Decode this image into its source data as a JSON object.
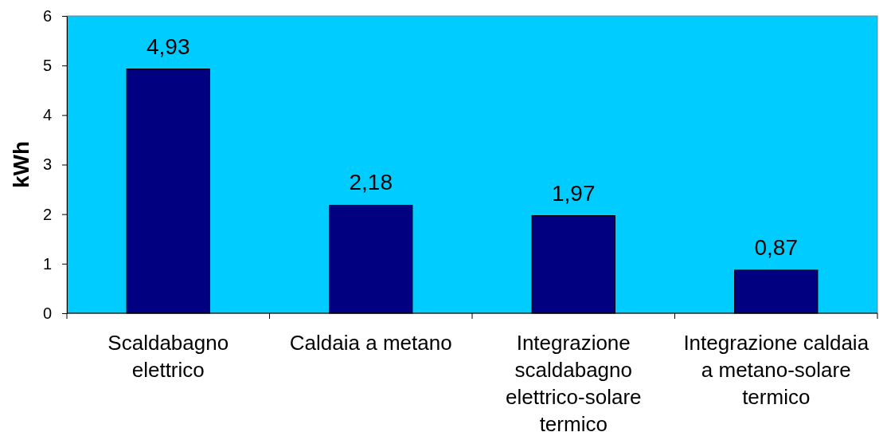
{
  "chart_data": {
    "type": "bar",
    "ylabel": "kWh",
    "categories": [
      "Scaldabagno elettrico",
      "Caldaia a metano",
      "Integrazione scaldabagno elettrico-solare termico",
      "Integrazione caldaia a metano-solare termico"
    ],
    "values": [
      4.93,
      2.18,
      1.97,
      0.87
    ],
    "value_labels": [
      "4,93",
      "2,18",
      "1,97",
      "0,87"
    ],
    "color": "#000080",
    "ylim": [
      0,
      6
    ],
    "yticks": [
      0,
      1,
      2,
      3,
      4,
      5,
      6
    ]
  }
}
